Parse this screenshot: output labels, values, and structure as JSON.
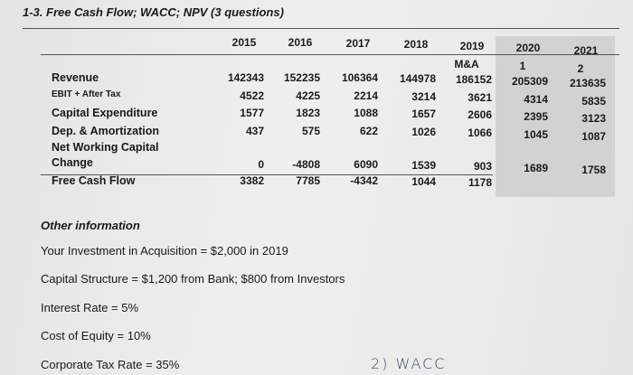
{
  "title": "1-3. Free Cash Flow; WACC; NPV (3 questions)",
  "table": {
    "years": [
      2015,
      2016,
      2017,
      2018,
      2019,
      2020,
      2021
    ],
    "subheaders": [
      null,
      null,
      null,
      null,
      "M&A",
      "1",
      "2"
    ],
    "rows": [
      {
        "label": "Revenue",
        "values": [
          142343,
          152235,
          106364,
          144978,
          186152,
          205309,
          213635
        ]
      },
      {
        "label": "EBIT + After Tax",
        "values": [
          4522,
          4225,
          2214,
          3214,
          3621,
          4314,
          5835
        ]
      },
      {
        "label": "Capital Expenditure",
        "values": [
          1577,
          1823,
          1088,
          1657,
          2606,
          2395,
          3123
        ]
      },
      {
        "label": "Dep. & Amortization",
        "values": [
          437,
          575,
          622,
          1026,
          1066,
          1045,
          1087
        ]
      },
      {
        "label": "Net Working Capital Change",
        "values": [
          0,
          -4808,
          6090,
          1539,
          903,
          1689,
          1758
        ]
      },
      {
        "label": "Free Cash Flow",
        "values": [
          3382,
          7785,
          -4342,
          1044,
          1178
        ]
      }
    ]
  },
  "other": {
    "heading": "Other information",
    "lines": [
      "Your Investment in Acquisition = $2,000 in 2019",
      "Capital Structure = $1,200 from Bank; $800 from Investors",
      "Interest Rate = 5%",
      "Cost of Equity = 10%",
      "Corporate Tax Rate = 35%"
    ]
  },
  "handwritten": "2) WACC"
}
